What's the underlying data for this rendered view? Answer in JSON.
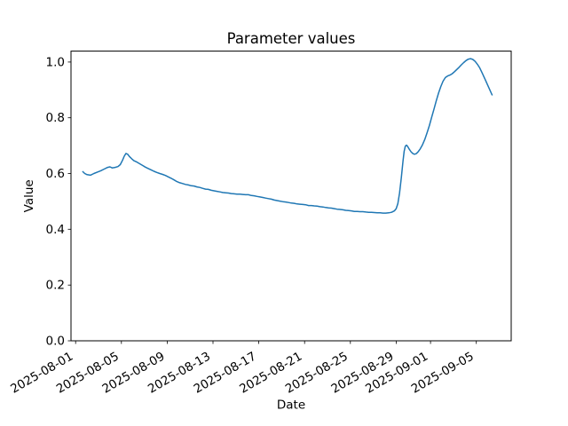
{
  "chart_data": {
    "type": "line",
    "title": "Parameter values",
    "xlabel": "Date",
    "ylabel": "Value",
    "grid": false,
    "x_unit": "days since 2025-08-01",
    "x_epoch": "2025-08-01",
    "x_tick_labels": [
      "2025-08-01",
      "2025-08-05",
      "2025-08-09",
      "2025-08-13",
      "2025-08-17",
      "2025-08-21",
      "2025-08-25",
      "2025-08-29",
      "2025-09-01",
      "2025-09-05"
    ],
    "y_ticks": [
      0.0,
      0.2,
      0.4,
      0.6,
      0.8,
      1.0
    ],
    "y_tick_labels": [
      "0.0",
      "0.2",
      "0.4",
      "0.6",
      "0.8",
      "1.0"
    ],
    "xlim_days": [
      -0.4,
      38.05
    ],
    "ylim": [
      0.0,
      1.039
    ],
    "series": [
      {
        "name": "parameter-values",
        "color": "#1f77b4",
        "linewidth": 1.5,
        "points": [
          [
            0.6,
            0.608
          ],
          [
            0.8,
            0.6
          ],
          [
            1.0,
            0.596
          ],
          [
            1.3,
            0.594
          ],
          [
            1.6,
            0.6
          ],
          [
            1.9,
            0.605
          ],
          [
            2.2,
            0.61
          ],
          [
            2.5,
            0.616
          ],
          [
            2.8,
            0.622
          ],
          [
            3.0,
            0.624
          ],
          [
            3.2,
            0.62
          ],
          [
            3.45,
            0.622
          ],
          [
            3.7,
            0.625
          ],
          [
            3.9,
            0.632
          ],
          [
            4.1,
            0.647
          ],
          [
            4.25,
            0.662
          ],
          [
            4.4,
            0.672
          ],
          [
            4.55,
            0.669
          ],
          [
            4.7,
            0.661
          ],
          [
            4.9,
            0.653
          ],
          [
            5.1,
            0.646
          ],
          [
            5.35,
            0.641
          ],
          [
            5.6,
            0.635
          ],
          [
            5.85,
            0.629
          ],
          [
            6.1,
            0.623
          ],
          [
            6.35,
            0.618
          ],
          [
            6.6,
            0.613
          ],
          [
            6.85,
            0.608
          ],
          [
            7.1,
            0.604
          ],
          [
            7.35,
            0.6
          ],
          [
            7.6,
            0.597
          ],
          [
            7.85,
            0.593
          ],
          [
            8.1,
            0.588
          ],
          [
            8.35,
            0.583
          ],
          [
            8.6,
            0.577
          ],
          [
            8.85,
            0.571
          ],
          [
            9.1,
            0.567
          ],
          [
            9.35,
            0.564
          ],
          [
            9.6,
            0.561
          ],
          [
            9.85,
            0.559
          ],
          [
            10.1,
            0.556
          ],
          [
            10.35,
            0.555
          ],
          [
            10.6,
            0.552
          ],
          [
            10.85,
            0.55
          ],
          [
            11.1,
            0.547
          ],
          [
            11.35,
            0.544
          ],
          [
            11.6,
            0.543
          ],
          [
            11.85,
            0.54
          ],
          [
            12.1,
            0.538
          ],
          [
            12.35,
            0.536
          ],
          [
            12.6,
            0.534
          ],
          [
            12.85,
            0.532
          ],
          [
            13.1,
            0.531
          ],
          [
            13.35,
            0.53
          ],
          [
            13.6,
            0.528
          ],
          [
            13.85,
            0.527
          ],
          [
            14.1,
            0.526
          ],
          [
            14.35,
            0.526
          ],
          [
            14.6,
            0.525
          ],
          [
            14.85,
            0.524
          ],
          [
            15.1,
            0.524
          ],
          [
            15.35,
            0.521
          ],
          [
            15.6,
            0.52
          ],
          [
            15.85,
            0.518
          ],
          [
            16.1,
            0.516
          ],
          [
            16.35,
            0.514
          ],
          [
            16.6,
            0.512
          ],
          [
            16.85,
            0.51
          ],
          [
            17.1,
            0.508
          ],
          [
            17.35,
            0.505
          ],
          [
            17.6,
            0.503
          ],
          [
            17.85,
            0.501
          ],
          [
            18.1,
            0.499
          ],
          [
            18.35,
            0.498
          ],
          [
            18.6,
            0.496
          ],
          [
            18.85,
            0.494
          ],
          [
            19.1,
            0.493
          ],
          [
            19.35,
            0.491
          ],
          [
            19.6,
            0.49
          ],
          [
            19.85,
            0.489
          ],
          [
            20.1,
            0.488
          ],
          [
            20.35,
            0.485
          ],
          [
            20.6,
            0.485
          ],
          [
            20.85,
            0.484
          ],
          [
            21.1,
            0.483
          ],
          [
            21.35,
            0.481
          ],
          [
            21.6,
            0.48
          ],
          [
            21.85,
            0.478
          ],
          [
            22.1,
            0.477
          ],
          [
            22.35,
            0.476
          ],
          [
            22.6,
            0.474
          ],
          [
            22.85,
            0.472
          ],
          [
            23.1,
            0.471
          ],
          [
            23.35,
            0.47
          ],
          [
            23.6,
            0.468
          ],
          [
            23.85,
            0.467
          ],
          [
            24.1,
            0.466
          ],
          [
            24.35,
            0.464
          ],
          [
            24.6,
            0.464
          ],
          [
            24.85,
            0.463
          ],
          [
            25.1,
            0.463
          ],
          [
            25.35,
            0.462
          ],
          [
            25.6,
            0.461
          ],
          [
            25.85,
            0.461
          ],
          [
            26.1,
            0.46
          ],
          [
            26.35,
            0.459
          ],
          [
            26.6,
            0.459
          ],
          [
            26.85,
            0.458
          ],
          [
            27.1,
            0.458
          ],
          [
            27.35,
            0.459
          ],
          [
            27.6,
            0.461
          ],
          [
            27.85,
            0.466
          ],
          [
            28.0,
            0.474
          ],
          [
            28.15,
            0.492
          ],
          [
            28.3,
            0.53
          ],
          [
            28.45,
            0.585
          ],
          [
            28.6,
            0.645
          ],
          [
            28.7,
            0.68
          ],
          [
            28.8,
            0.698
          ],
          [
            28.9,
            0.702
          ],
          [
            29.0,
            0.697
          ],
          [
            29.15,
            0.687
          ],
          [
            29.3,
            0.678
          ],
          [
            29.45,
            0.672
          ],
          [
            29.6,
            0.669
          ],
          [
            29.75,
            0.671
          ],
          [
            29.9,
            0.677
          ],
          [
            30.1,
            0.688
          ],
          [
            30.3,
            0.703
          ],
          [
            30.5,
            0.722
          ],
          [
            30.7,
            0.746
          ],
          [
            30.9,
            0.772
          ],
          [
            31.1,
            0.801
          ],
          [
            31.3,
            0.83
          ],
          [
            31.5,
            0.86
          ],
          [
            31.7,
            0.888
          ],
          [
            31.9,
            0.912
          ],
          [
            32.1,
            0.931
          ],
          [
            32.3,
            0.944
          ],
          [
            32.5,
            0.95
          ],
          [
            32.7,
            0.953
          ],
          [
            32.9,
            0.958
          ],
          [
            33.1,
            0.965
          ],
          [
            33.3,
            0.973
          ],
          [
            33.5,
            0.981
          ],
          [
            33.7,
            0.99
          ],
          [
            33.9,
            0.998
          ],
          [
            34.1,
            1.005
          ],
          [
            34.3,
            1.01
          ],
          [
            34.5,
            1.012
          ],
          [
            34.7,
            1.009
          ],
          [
            34.9,
            1.002
          ],
          [
            35.1,
            0.992
          ],
          [
            35.3,
            0.979
          ],
          [
            35.5,
            0.962
          ],
          [
            35.8,
            0.935
          ],
          [
            36.1,
            0.908
          ],
          [
            36.4,
            0.88
          ]
        ]
      }
    ]
  }
}
